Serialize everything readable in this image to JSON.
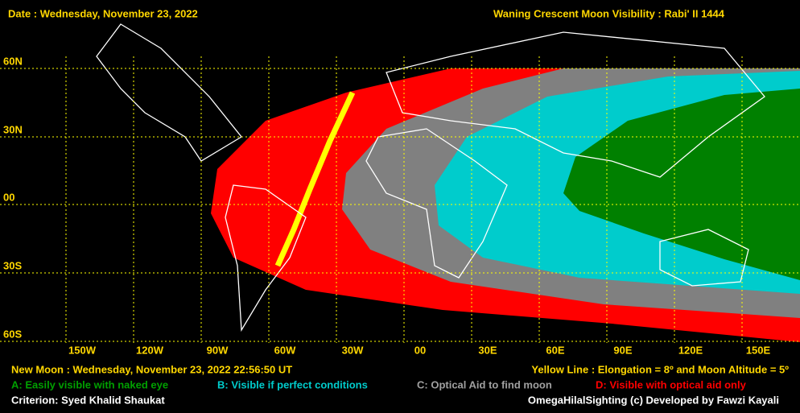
{
  "header": {
    "date": "Date : Wednesday, November 23, 2022",
    "title": "Waning Crescent Moon Visibility : Rabi' II 1444"
  },
  "grid": {
    "lat_labels": [
      "60N",
      "30N",
      "00",
      "30S",
      "60S"
    ],
    "lon_labels": [
      "150W",
      "120W",
      "90W",
      "60W",
      "30W",
      "00",
      "30E",
      "60E",
      "90E",
      "120E",
      "150E"
    ]
  },
  "footer": {
    "new_moon": "New Moon : Wednesday, November 23, 2022  22:56:50  UT",
    "yellow_line": "Yellow Line : Elongation = 8º  and Moon Altitude = 5º",
    "legend": [
      "A: Easily visible with naked eye",
      "B: Visible if perfect conditions",
      "C: Optical Aid to find moon",
      "D: Visible with optical aid only"
    ],
    "criterion": "Criterion: Syed Khalid Shaukat",
    "credit": "OmegaHilalSighting  (c)  Developed by Fawzi Kayali"
  }
}
